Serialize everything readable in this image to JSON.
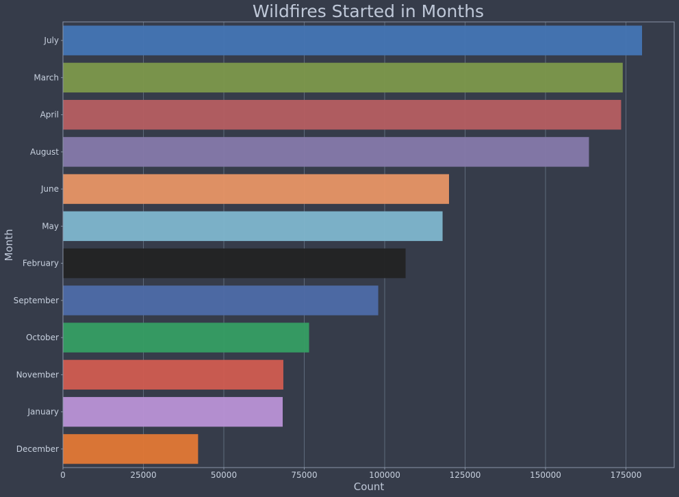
{
  "chart_data": {
    "type": "bar",
    "orientation": "horizontal",
    "title": "Wildfires Started in Months",
    "xlabel": "Count",
    "ylabel": "Month",
    "xlim": [
      0,
      190000
    ],
    "xticks": [
      0,
      25000,
      50000,
      75000,
      100000,
      125000,
      150000,
      175000
    ],
    "grid": "vertical",
    "legend": "none",
    "categories": [
      "July",
      "March",
      "April",
      "August",
      "June",
      "May",
      "February",
      "September",
      "October",
      "November",
      "January",
      "December"
    ],
    "values": [
      180000,
      174000,
      173500,
      163500,
      120000,
      118000,
      106500,
      98000,
      76500,
      68500,
      68300,
      42000
    ],
    "colors": [
      "#4575b4",
      "#7d984b",
      "#b65e61",
      "#8679aa",
      "#e89565",
      "#80b6cd",
      "#232323",
      "#4e6ba8",
      "#369e63",
      "#d15c50",
      "#bb92d6",
      "#e37835"
    ]
  }
}
